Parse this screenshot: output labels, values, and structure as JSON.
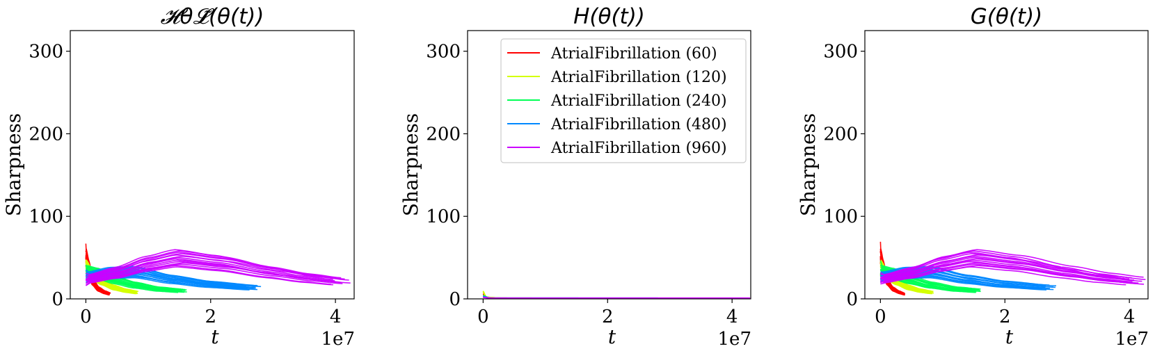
{
  "chart_data": [
    {
      "type": "line",
      "title": "𝓗θ𝓛̃(θ(t))",
      "xlabel": "t",
      "ylabel": "Sharpness",
      "x_offset_text": "1e7",
      "xlim": [
        -0.25,
        4.3
      ],
      "ylim": [
        0,
        325
      ],
      "xticks": [
        0,
        2,
        4
      ],
      "yticks": [
        0,
        100,
        200,
        300
      ],
      "series": [
        {
          "name": "AtrialFibrillation (60)",
          "color": "#ff0000",
          "x": [
            0,
            0.05,
            0.1,
            0.2,
            0.3,
            0.38
          ],
          "y": [
            52,
            38,
            22,
            12,
            8,
            6
          ]
        },
        {
          "name": "AtrialFibrillation (120)",
          "color": "#d4ff00",
          "x": [
            0,
            0.1,
            0.25,
            0.45,
            0.65,
            0.82
          ],
          "y": [
            40,
            30,
            22,
            14,
            10,
            8
          ]
        },
        {
          "name": "AtrialFibrillation (240)",
          "color": "#00ff55",
          "x": [
            0,
            0.2,
            0.45,
            0.8,
            1.2,
            1.55
          ],
          "y": [
            34,
            31,
            24,
            17,
            12,
            10
          ]
        },
        {
          "name": "AtrialFibrillation (480)",
          "color": "#0088ff",
          "x": [
            0,
            0.4,
            0.8,
            1.4,
            2.0,
            2.7
          ],
          "y": [
            27,
            32,
            33,
            24,
            18,
            14
          ]
        },
        {
          "name": "AtrialFibrillation (960)",
          "color": "#cc00ff",
          "x": [
            0,
            0.5,
            1.0,
            1.5,
            2.2,
            3.0,
            3.6,
            4.1
          ],
          "y": [
            24,
            32,
            43,
            50,
            44,
            33,
            26,
            22
          ]
        }
      ]
    },
    {
      "type": "line",
      "title": "H(θ(t))",
      "xlabel": "t",
      "ylabel": "Sharpness",
      "x_offset_text": "1e7",
      "xlim": [
        -0.25,
        4.3
      ],
      "ylim": [
        0,
        325
      ],
      "xticks": [
        0,
        2,
        4
      ],
      "yticks": [
        0,
        100,
        200,
        300
      ],
      "legend": "top-right",
      "series": [
        {
          "name": "AtrialFibrillation (60)",
          "color": "#ff0000",
          "x": [
            0,
            0.05,
            0.2,
            0.38
          ],
          "y": [
            6,
            2,
            1,
            1
          ]
        },
        {
          "name": "AtrialFibrillation (120)",
          "color": "#d4ff00",
          "x": [
            0,
            0.05,
            0.3,
            0.82
          ],
          "y": [
            9,
            2,
            1,
            1
          ]
        },
        {
          "name": "AtrialFibrillation (240)",
          "color": "#00ff55",
          "x": [
            0,
            0.1,
            0.6,
            1.55
          ],
          "y": [
            4,
            1,
            1,
            1
          ]
        },
        {
          "name": "AtrialFibrillation (480)",
          "color": "#0088ff",
          "x": [
            0,
            0.1,
            1.0,
            2.7
          ],
          "y": [
            3,
            1,
            1,
            1
          ]
        },
        {
          "name": "AtrialFibrillation (960)",
          "color": "#cc00ff",
          "x": [
            0,
            0.1,
            2.0,
            4.1
          ],
          "y": [
            2,
            1,
            1,
            1
          ]
        }
      ]
    },
    {
      "type": "line",
      "title": "G(θ(t))",
      "xlabel": "t",
      "ylabel": "Sharpness",
      "x_offset_text": "1e7",
      "xlim": [
        -0.25,
        4.3
      ],
      "ylim": [
        0,
        325
      ],
      "xticks": [
        0,
        2,
        4
      ],
      "yticks": [
        0,
        100,
        200,
        300
      ],
      "series": [
        {
          "name": "AtrialFibrillation (60)",
          "color": "#ff0000",
          "x": [
            0,
            0.05,
            0.1,
            0.2,
            0.3,
            0.38
          ],
          "y": [
            52,
            38,
            22,
            12,
            8,
            6
          ]
        },
        {
          "name": "AtrialFibrillation (120)",
          "color": "#d4ff00",
          "x": [
            0,
            0.1,
            0.25,
            0.45,
            0.65,
            0.82
          ],
          "y": [
            40,
            30,
            22,
            14,
            10,
            8
          ]
        },
        {
          "name": "AtrialFibrillation (240)",
          "color": "#00ff55",
          "x": [
            0,
            0.2,
            0.45,
            0.8,
            1.2,
            1.55
          ],
          "y": [
            34,
            31,
            24,
            17,
            12,
            10
          ]
        },
        {
          "name": "AtrialFibrillation (480)",
          "color": "#0088ff",
          "x": [
            0,
            0.4,
            0.8,
            1.4,
            2.0,
            2.7
          ],
          "y": [
            27,
            32,
            33,
            24,
            18,
            14
          ]
        },
        {
          "name": "AtrialFibrillation (960)",
          "color": "#cc00ff",
          "x": [
            0,
            0.5,
            1.0,
            1.5,
            2.2,
            3.0,
            3.6,
            4.1
          ],
          "y": [
            24,
            32,
            43,
            50,
            44,
            33,
            26,
            22
          ]
        }
      ]
    }
  ]
}
